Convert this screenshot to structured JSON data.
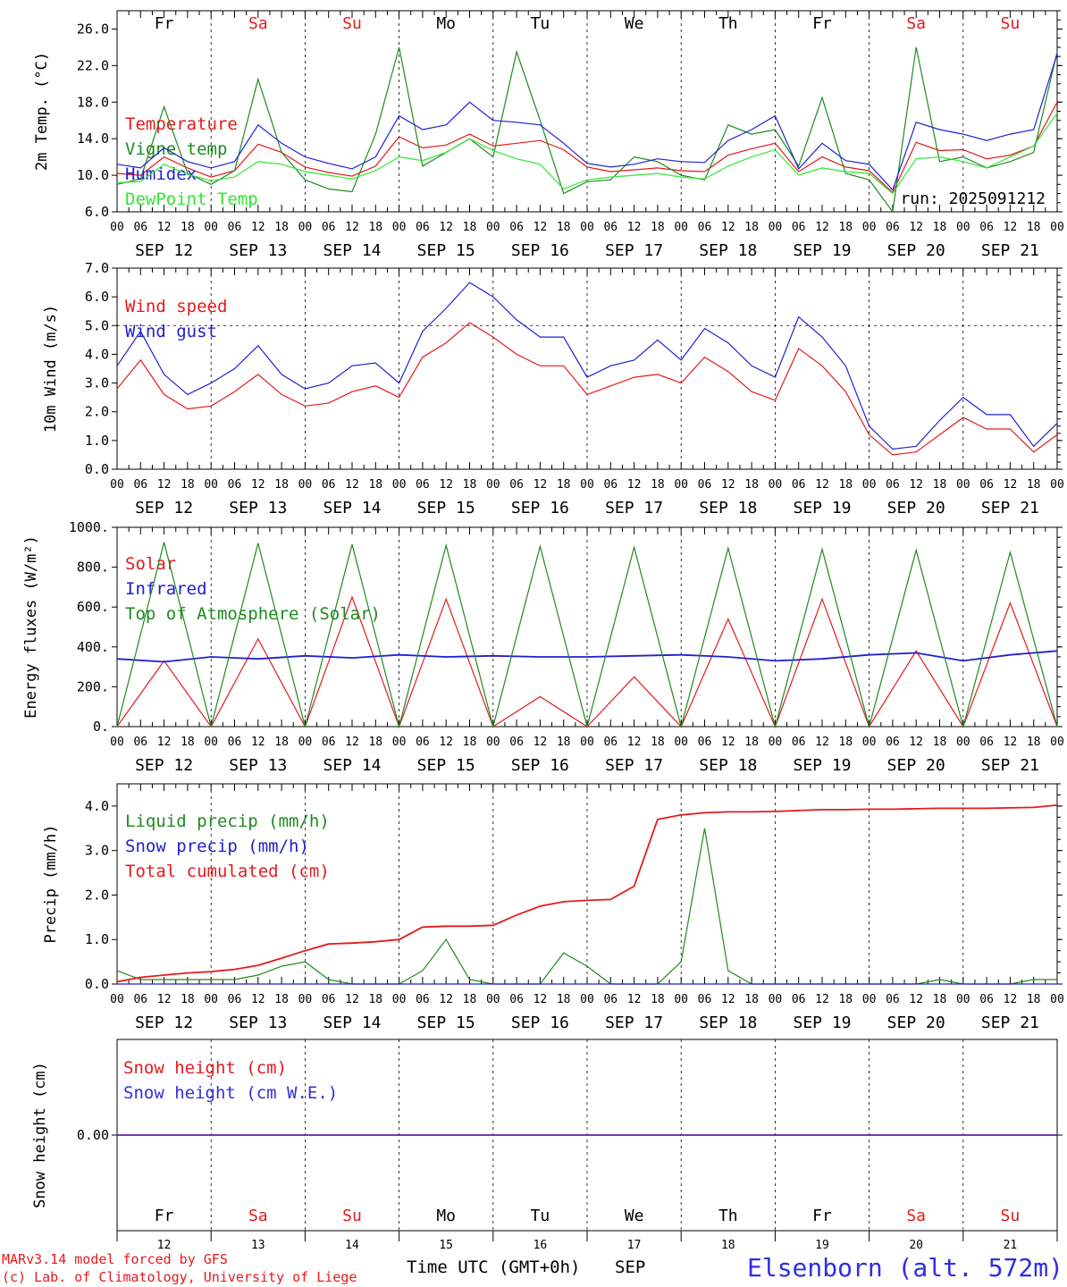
{
  "colors": {
    "red": "#e41a1c",
    "blue": "#2020d0",
    "green": "#1e8a1e",
    "lightgreen": "#33e633",
    "text_blue": "#2f2fe0"
  },
  "chart_data": [
    {
      "type": "line",
      "ylabel": "2m Temp. (°C)",
      "ylim": [
        6.0,
        28.0
      ],
      "yticks": [
        6.0,
        10.0,
        14.0,
        18.0,
        22.0,
        26.0
      ],
      "ytick_labels": [
        "6.0",
        "10.0",
        "14.0",
        "18.0",
        "22.0",
        "26.0"
      ],
      "x_hours": [
        0,
        6,
        12,
        18,
        24,
        30,
        36,
        42,
        48,
        54,
        60,
        66,
        72,
        78,
        84,
        90,
        96,
        102,
        108,
        114,
        120,
        126,
        132,
        138,
        144,
        150,
        156,
        162,
        168,
        174,
        180,
        186,
        192,
        198,
        204,
        210,
        216,
        222,
        228,
        234,
        240
      ],
      "annotation": "run: 2025091212",
      "series": [
        {
          "name": "Temperature",
          "color": "#e41a1c",
          "values": [
            10.2,
            10.0,
            12.0,
            10.8,
            9.8,
            10.5,
            13.4,
            12.5,
            10.9,
            10.3,
            9.9,
            11.0,
            14.2,
            13.0,
            13.3,
            14.5,
            13.2,
            13.5,
            13.8,
            12.8,
            10.9,
            10.4,
            10.6,
            10.8,
            10.5,
            10.4,
            12.2,
            12.9,
            13.5,
            10.4,
            12.0,
            10.9,
            10.5,
            8.1,
            13.6,
            12.7,
            12.8,
            11.8,
            12.2,
            13.2,
            18.0
          ]
        },
        {
          "name": "Vigne temp",
          "color": "#1e8a1e",
          "values": [
            9.0,
            9.6,
            17.5,
            10.2,
            9.0,
            10.5,
            20.5,
            12.5,
            9.5,
            8.5,
            8.2,
            14.5,
            24.0,
            11.0,
            12.5,
            14.0,
            12.0,
            23.5,
            16.0,
            8.0,
            9.3,
            9.5,
            12.0,
            11.5,
            10.0,
            9.5,
            15.5,
            14.5,
            15.0,
            11.0,
            18.5,
            10.2,
            9.5,
            6.0,
            24.0,
            11.5,
            12.0,
            10.8,
            11.5,
            12.5,
            23.5
          ]
        },
        {
          "name": "Humidex",
          "color": "#2020d0",
          "values": [
            11.2,
            10.8,
            13.0,
            11.5,
            10.8,
            11.5,
            15.5,
            13.5,
            12.0,
            11.3,
            10.7,
            12.0,
            16.5,
            15.0,
            15.5,
            18.0,
            16.0,
            15.8,
            15.5,
            13.5,
            11.3,
            10.9,
            11.2,
            11.8,
            11.5,
            11.4,
            13.8,
            15.0,
            16.5,
            10.7,
            13.5,
            11.6,
            11.2,
            8.4,
            15.8,
            15.0,
            14.5,
            13.8,
            14.5,
            15.0,
            23.3
          ]
        },
        {
          "name": "DewPoint Temp",
          "color": "#33e633",
          "values": [
            9.2,
            9.3,
            11.2,
            10.1,
            9.4,
            9.8,
            11.5,
            11.2,
            10.4,
            10.0,
            9.6,
            10.5,
            12.0,
            11.6,
            12.5,
            14.0,
            12.7,
            11.8,
            11.2,
            8.5,
            9.5,
            9.8,
            10.0,
            10.2,
            9.8,
            9.6,
            11.0,
            12.0,
            12.8,
            10.0,
            10.8,
            10.4,
            10.2,
            8.0,
            11.8,
            12.0,
            11.5,
            10.8,
            12.0,
            13.2,
            16.8
          ]
        }
      ]
    },
    {
      "type": "line",
      "ylabel": "10m Wind (m/s)",
      "ylim": [
        0.0,
        7.0
      ],
      "yticks": [
        0.0,
        1.0,
        2.0,
        3.0,
        4.0,
        5.0,
        6.0,
        7.0
      ],
      "ytick_labels": [
        "0.0",
        "1.0",
        "2.0",
        "3.0",
        "4.0",
        "5.0",
        "6.0",
        "7.0"
      ],
      "reference_line": 5.0,
      "x_hours": [
        0,
        6,
        12,
        18,
        24,
        30,
        36,
        42,
        48,
        54,
        60,
        66,
        72,
        78,
        84,
        90,
        96,
        102,
        108,
        114,
        120,
        126,
        132,
        138,
        144,
        150,
        156,
        162,
        168,
        174,
        180,
        186,
        192,
        198,
        204,
        210,
        216,
        222,
        228,
        234,
        240
      ],
      "series": [
        {
          "name": "Wind speed",
          "color": "#e41a1c",
          "values": [
            2.8,
            3.8,
            2.6,
            2.1,
            2.2,
            2.7,
            3.3,
            2.6,
            2.2,
            2.3,
            2.7,
            2.9,
            2.5,
            3.9,
            4.4,
            5.1,
            4.6,
            4.0,
            3.6,
            3.6,
            2.6,
            2.9,
            3.2,
            3.3,
            3.0,
            3.9,
            3.4,
            2.7,
            2.4,
            4.2,
            3.6,
            2.7,
            1.2,
            0.5,
            0.6,
            1.2,
            1.8,
            1.4,
            1.4,
            0.6,
            1.2
          ]
        },
        {
          "name": "Wind gust",
          "color": "#2020d0",
          "values": [
            3.6,
            4.8,
            3.3,
            2.6,
            3.0,
            3.5,
            4.3,
            3.3,
            2.8,
            3.0,
            3.6,
            3.7,
            3.0,
            4.8,
            5.6,
            6.5,
            6.0,
            5.2,
            4.6,
            4.6,
            3.2,
            3.6,
            3.8,
            4.5,
            3.8,
            4.9,
            4.4,
            3.6,
            3.2,
            5.3,
            4.6,
            3.6,
            1.5,
            0.7,
            0.8,
            1.7,
            2.5,
            1.9,
            1.9,
            0.8,
            1.6
          ]
        }
      ]
    },
    {
      "type": "line",
      "ylabel": "Energy fluxes (W/m²)",
      "ylim": [
        0,
        1000
      ],
      "yticks": [
        0,
        200,
        400,
        600,
        800,
        1000
      ],
      "ytick_labels": [
        "0.",
        "200.",
        "400.",
        "600.",
        "800.",
        "1000."
      ],
      "daily_peaks": {
        "day_hours": [
          12,
          36,
          60,
          84,
          108,
          132,
          156,
          180,
          204,
          228
        ],
        "top_of_atmosphere_solar": [
          925,
          920,
          915,
          910,
          905,
          900,
          895,
          890,
          885,
          875
        ],
        "solar": [
          330,
          440,
          650,
          640,
          150,
          250,
          540,
          640,
          380,
          620
        ]
      },
      "x_hours": [
        0,
        12,
        24,
        36,
        48,
        60,
        72,
        84,
        96,
        108,
        120,
        132,
        144,
        156,
        168,
        180,
        192,
        204,
        216,
        228,
        240
      ],
      "series": [
        {
          "name": "Solar",
          "color": "#e41a1c",
          "values": [
            0,
            330,
            0,
            440,
            0,
            650,
            0,
            640,
            0,
            150,
            0,
            250,
            0,
            540,
            0,
            640,
            0,
            380,
            0,
            620,
            0
          ]
        },
        {
          "name": "Infrared",
          "color": "#2020d0",
          "values": [
            340,
            325,
            350,
            340,
            355,
            345,
            360,
            350,
            355,
            350,
            350,
            355,
            360,
            350,
            330,
            340,
            360,
            370,
            330,
            360,
            380
          ]
        },
        {
          "name": "Top of Atmosphere (Solar)",
          "color": "#1e8a1e",
          "values": [
            0,
            925,
            0,
            920,
            0,
            915,
            0,
            910,
            0,
            905,
            0,
            900,
            0,
            895,
            0,
            890,
            0,
            885,
            0,
            875,
            0
          ]
        }
      ]
    },
    {
      "type": "line",
      "ylabel": "Precip (mm/h)",
      "ylim": [
        0.0,
        4.5
      ],
      "yticks": [
        0.0,
        1.0,
        2.0,
        3.0,
        4.0
      ],
      "ytick_labels": [
        "0.0",
        "1.0",
        "2.0",
        "3.0",
        "4.0"
      ],
      "x_hours": [
        0,
        6,
        12,
        18,
        24,
        30,
        36,
        42,
        48,
        54,
        60,
        66,
        72,
        78,
        84,
        90,
        96,
        102,
        108,
        114,
        120,
        126,
        132,
        138,
        144,
        150,
        156,
        162,
        168,
        174,
        180,
        186,
        192,
        198,
        204,
        210,
        216,
        222,
        228,
        234,
        240
      ],
      "series": [
        {
          "name": "Liquid precip (mm/h)",
          "color": "#1e8a1e",
          "values": [
            0.3,
            0.1,
            0.1,
            0.1,
            0.1,
            0.1,
            0.2,
            0.4,
            0.5,
            0.1,
            0.0,
            0.0,
            0.0,
            0.3,
            1.0,
            0.1,
            0.0,
            0.0,
            0.0,
            0.7,
            0.4,
            0.0,
            0.0,
            0.0,
            0.5,
            3.5,
            0.3,
            0.0,
            0.0,
            0.0,
            0.0,
            0.0,
            0.0,
            0.0,
            0.0,
            0.1,
            0.0,
            0.0,
            0.0,
            0.1,
            0.1
          ]
        },
        {
          "name": "Snow precip (mm/h)",
          "color": "#2020d0",
          "values": [
            0.0,
            0.0,
            0.0,
            0.0,
            0.0,
            0.0,
            0.0,
            0.0,
            0.0,
            0.0,
            0.0,
            0.0,
            0.0,
            0.0,
            0.0,
            0.0,
            0.0,
            0.0,
            0.0,
            0.0,
            0.0,
            0.0,
            0.0,
            0.0,
            0.0,
            0.0,
            0.0,
            0.0,
            0.0,
            0.0,
            0.0,
            0.0,
            0.0,
            0.0,
            0.0,
            0.0,
            0.0,
            0.0,
            0.0,
            0.0,
            0.0
          ]
        },
        {
          "name": "Total cumulated (cm)",
          "color": "#e41a1c",
          "values": [
            0.05,
            0.15,
            0.2,
            0.25,
            0.28,
            0.33,
            0.42,
            0.58,
            0.75,
            0.9,
            0.92,
            0.95,
            1.0,
            1.28,
            1.3,
            1.3,
            1.32,
            1.55,
            1.75,
            1.85,
            1.88,
            1.9,
            2.2,
            3.7,
            3.8,
            3.85,
            3.87,
            3.87,
            3.88,
            3.9,
            3.92,
            3.92,
            3.93,
            3.93,
            3.94,
            3.95,
            3.95,
            3.95,
            3.96,
            3.97,
            4.02
          ]
        }
      ]
    },
    {
      "type": "line",
      "ylabel": "Snow height (cm)",
      "ylim": [
        -1.0,
        1.0
      ],
      "yticks": [
        0.0
      ],
      "ytick_labels": [
        "0.00"
      ],
      "x_hours": [
        0,
        240
      ],
      "series": [
        {
          "name": "Snow height (cm)",
          "color": "#e41a1c",
          "values": [
            0.0,
            0.0
          ]
        },
        {
          "name": "Snow height (cm W.E.)",
          "color": "#2f2fe0",
          "values": [
            0.0,
            0.0
          ]
        }
      ]
    }
  ],
  "days": [
    {
      "dow": "Fr",
      "date": "SEP 12",
      "num": "12",
      "weekend": false
    },
    {
      "dow": "Sa",
      "date": "SEP 13",
      "num": "13",
      "weekend": true
    },
    {
      "dow": "Su",
      "date": "SEP 14",
      "num": "14",
      "weekend": true
    },
    {
      "dow": "Mo",
      "date": "SEP 15",
      "num": "15",
      "weekend": false
    },
    {
      "dow": "Tu",
      "date": "SEP 16",
      "num": "16",
      "weekend": false
    },
    {
      "dow": "We",
      "date": "SEP 17",
      "num": "17",
      "weekend": false
    },
    {
      "dow": "Th",
      "date": "SEP 18",
      "num": "18",
      "weekend": false
    },
    {
      "dow": "Fr",
      "date": "SEP 19",
      "num": "19",
      "weekend": false
    },
    {
      "dow": "Sa",
      "date": "SEP 20",
      "num": "20",
      "weekend": true
    },
    {
      "dow": "Su",
      "date": "SEP 21",
      "num": "21",
      "weekend": true
    }
  ],
  "hour_labels": [
    "00",
    "06",
    "12",
    "18"
  ],
  "hour_label_end": "00",
  "x_axis_title": "Time UTC (GMT+0h)",
  "month_label": "SEP",
  "footer": {
    "credit_line1": "MARv3.14 model forced by GFS",
    "credit_line2": "(c) Lab. of Climatology, University of Liege",
    "station": "Elsenborn (alt. 572m)"
  }
}
